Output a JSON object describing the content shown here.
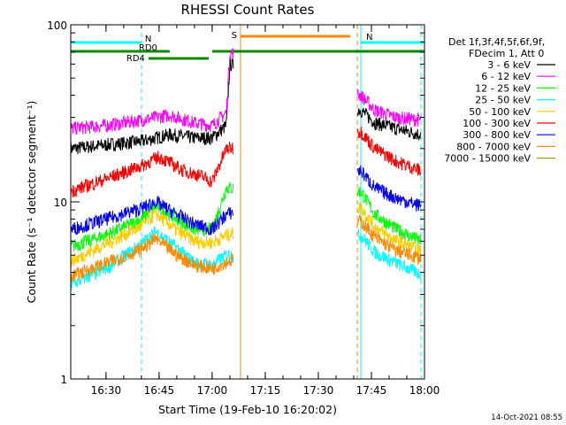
{
  "chart_data": {
    "type": "line",
    "title": "RHESSI Count Rates",
    "xlabel": "Start Time (19-Feb-10 16:20:02)",
    "ylabel": "Count Rate (s⁻¹ detector segment⁻¹)",
    "xlim": [
      "16:20:02",
      "18:00"
    ],
    "ylim": [
      1,
      100
    ],
    "yscale": "log",
    "x_ticks": [
      "16:30",
      "16:45",
      "17:00",
      "17:15",
      "17:30",
      "17:45",
      "18:00"
    ],
    "y_ticks": [
      "1",
      "10",
      "100"
    ],
    "timestamp": "14-Oct-2021 08:55",
    "legend": {
      "placement": "top-right",
      "header": [
        "Det 1f,3f,4f,5f,6f,9f,",
        "FDecim 1, Att 0"
      ]
    },
    "series": [
      {
        "name": "3 - 6 keV",
        "color": "#000000",
        "x": [
          "16:20",
          "16:30",
          "16:40",
          "16:48",
          "16:55",
          "17:00",
          "17:04",
          "17:05",
          "17:42",
          "17:46",
          "17:52",
          "17:59"
        ],
        "y": [
          20,
          21,
          22,
          24,
          23,
          23,
          27,
          60,
          33,
          28,
          26,
          24
        ]
      },
      {
        "name": "6 - 12 keV",
        "color": "#ff00ff",
        "x": [
          "16:20",
          "16:30",
          "16:40",
          "16:48",
          "16:55",
          "17:00",
          "17:04",
          "17:05",
          "17:42",
          "17:46",
          "17:52",
          "17:59"
        ],
        "y": [
          26,
          27,
          29,
          31,
          28,
          27,
          32,
          70,
          40,
          33,
          30,
          29
        ]
      },
      {
        "name": "12 - 25 keV",
        "color": "#00ff00",
        "x": [
          "16:20",
          "16:30",
          "16:40",
          "16:44",
          "16:50",
          "16:55",
          "17:00",
          "17:04",
          "17:42",
          "17:46",
          "17:52",
          "17:59"
        ],
        "y": [
          5.6,
          6.5,
          8.0,
          9.5,
          8.0,
          7.0,
          7.0,
          12,
          11.5,
          8.5,
          7.0,
          6.0
        ]
      },
      {
        "name": "25 - 50 keV",
        "color": "#00ffff",
        "x": [
          "16:20",
          "16:30",
          "16:40",
          "16:44",
          "16:50",
          "16:55",
          "17:00",
          "17:04",
          "17:42",
          "17:46",
          "17:52",
          "17:59"
        ],
        "y": [
          3.4,
          4.2,
          5.8,
          6.8,
          5.5,
          4.5,
          4.4,
          5.0,
          6.5,
          5.2,
          4.5,
          3.9
        ]
      },
      {
        "name": "50 - 100 keV",
        "color": "#ffcc00",
        "x": [
          "16:20",
          "16:30",
          "16:40",
          "16:44",
          "16:50",
          "16:55",
          "17:00",
          "17:04",
          "17:42",
          "17:46",
          "17:52",
          "17:59"
        ],
        "y": [
          4.6,
          5.8,
          7.3,
          8.6,
          6.9,
          6.0,
          5.9,
          6.5,
          9.3,
          7.2,
          6.0,
          5.3
        ]
      },
      {
        "name": "100 - 300 keV",
        "color": "#ff0000",
        "x": [
          "16:20",
          "16:30",
          "16:40",
          "16:45",
          "16:52",
          "16:57",
          "17:00",
          "17:04",
          "17:42",
          "17:46",
          "17:52",
          "17:59"
        ],
        "y": [
          11.5,
          13.5,
          16,
          18,
          15,
          14,
          13,
          20,
          25,
          20,
          17,
          15
        ]
      },
      {
        "name": "300 - 800 keV",
        "color": "#0000ff",
        "x": [
          "16:20",
          "16:30",
          "16:40",
          "16:44",
          "16:50",
          "16:55",
          "17:00",
          "17:04",
          "17:42",
          "17:46",
          "17:52",
          "17:59"
        ],
        "y": [
          7.0,
          8.0,
          9.2,
          10,
          8.5,
          7.5,
          7.0,
          8.5,
          15,
          12,
          10.5,
          9.5
        ]
      },
      {
        "name": "800 - 7000 keV",
        "color": "#ff8800",
        "x": [
          "16:20",
          "16:30",
          "16:40",
          "16:44",
          "16:50",
          "16:55",
          "17:00",
          "17:04",
          "17:42",
          "17:46",
          "17:52",
          "17:59"
        ],
        "y": [
          3.8,
          4.5,
          5.4,
          6.2,
          5.0,
          4.4,
          4.2,
          4.6,
          7.8,
          6.3,
          5.3,
          4.8
        ]
      },
      {
        "name": "7000 - 15000 keV",
        "color": "#999900",
        "x": [],
        "y": []
      }
    ],
    "annotations": {
      "markers": [
        {
          "label": "N",
          "color": "#00ffff",
          "x_start": "16:20",
          "x_end": "16:40"
        },
        {
          "label": "N",
          "color": "#00ffff",
          "x_start": "17:42",
          "x_end": "18:00"
        },
        {
          "label": "S",
          "color": "#ff8800",
          "x_start": "17:08",
          "x_end": "17:39"
        },
        {
          "label": "RD0",
          "color": "#008800",
          "x_start": "16:40",
          "x_end": "16:48"
        },
        {
          "label": "RD4",
          "color": "#008800",
          "x_start": "16:42",
          "x_end": "16:59"
        },
        {
          "label": "",
          "color": "#008800",
          "x_start": "16:20",
          "x_end": "16:40"
        },
        {
          "label": "",
          "color": "#008800",
          "x_start": "17:00",
          "x_end": "18:00"
        }
      ],
      "vertical_lines": [
        {
          "x": "16:40",
          "color": "#00ffff",
          "style": "dashed"
        },
        {
          "x": "17:42",
          "color": "#00ffff",
          "style": "solid"
        },
        {
          "x": "17:59",
          "color": "#00ffff",
          "style": "dashed"
        },
        {
          "x": "17:08",
          "color": "#ff8800",
          "style": "solid"
        },
        {
          "x": "17:41",
          "color": "#ff8800",
          "style": "dashed"
        }
      ]
    },
    "grid": false
  }
}
